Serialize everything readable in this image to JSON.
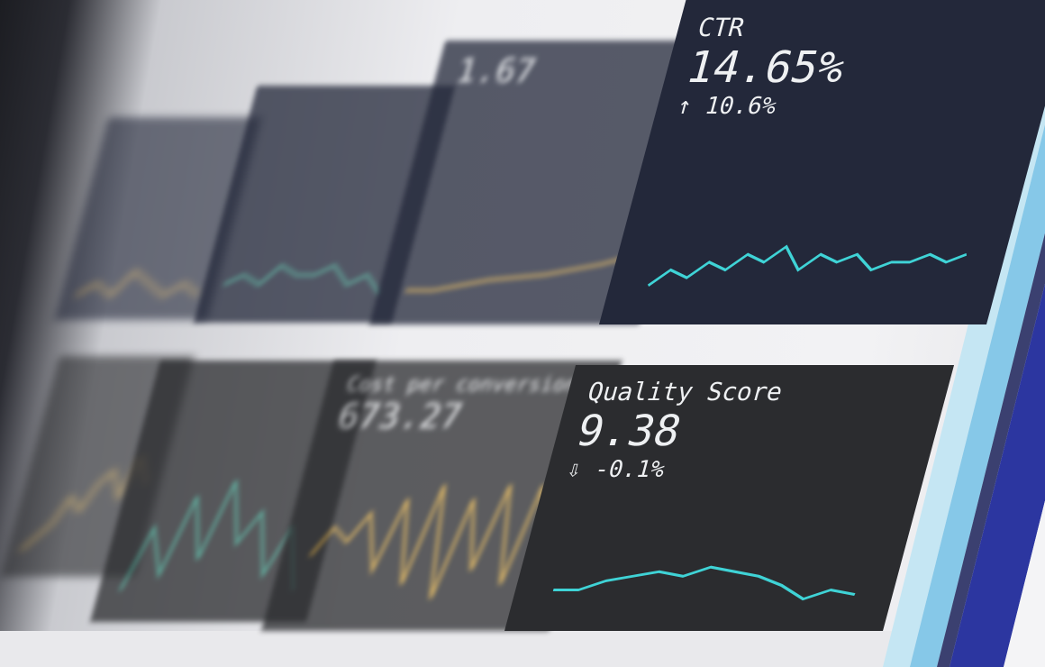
{
  "colors": {
    "card_blue": "#23283a",
    "card_dark": "#2b2c2f",
    "cyan": "#3fd3d6",
    "gold": "#d9a63a",
    "teal": "#3aa08a",
    "stripes": [
      "#bfe3f2",
      "#7fc4e6",
      "#3a3f8f",
      "#2b37a6"
    ]
  },
  "cards": [
    {
      "label": "",
      "value": "",
      "change": "",
      "color": "#d9a63a",
      "spark": [
        5,
        6,
        5,
        7,
        6,
        5,
        6,
        5
      ],
      "style": "blur2"
    },
    {
      "label": "",
      "value": "",
      "change": "",
      "color": "#3aa08a",
      "spark": [
        4,
        5,
        4,
        6,
        5,
        5,
        6,
        4,
        5,
        3
      ],
      "style": "blur"
    },
    {
      "label": "",
      "value": "1.67",
      "change": "",
      "color": "#d9a63a",
      "spark": [
        3,
        3,
        3.2,
        3.4,
        3.5,
        3.6,
        3.8,
        4,
        4.3
      ],
      "style": "blur"
    },
    {
      "label": "CTR",
      "value": "14.65%",
      "change": "↑ 10.6%",
      "color": "#3fd3d6",
      "spark": [
        3,
        5,
        4,
        6,
        5,
        7,
        6,
        8,
        5,
        7,
        6,
        7,
        5,
        6,
        6,
        7,
        6,
        7
      ],
      "style": ""
    },
    {
      "label": "",
      "value": "",
      "change": "",
      "color": "#d9a63a",
      "spark": [
        2,
        3,
        4,
        6,
        5,
        7,
        8,
        6,
        9,
        7
      ],
      "style": "blur2"
    },
    {
      "label": "",
      "value": "",
      "change": "",
      "color": "#3aa08a",
      "spark": [
        2,
        6,
        3,
        8,
        4,
        9,
        5,
        7,
        3,
        6,
        2
      ],
      "style": "blur"
    },
    {
      "label": "Cost per conversion",
      "value": "673.27",
      "change": "",
      "color": "#d9a63a",
      "spark": [
        4,
        6,
        5,
        7,
        3,
        8,
        2,
        9,
        1,
        8,
        3,
        9,
        2,
        9,
        3
      ],
      "style": "blur"
    },
    {
      "label": "Quality Score",
      "value": "9.38",
      "change": "⇩ -0.1%",
      "color": "#3fd3d6",
      "spark": [
        6,
        6,
        6.2,
        6.3,
        6.4,
        6.3,
        6.5,
        6.4,
        6.3,
        6.1,
        5.8,
        6,
        5.9
      ],
      "style": ""
    }
  ]
}
